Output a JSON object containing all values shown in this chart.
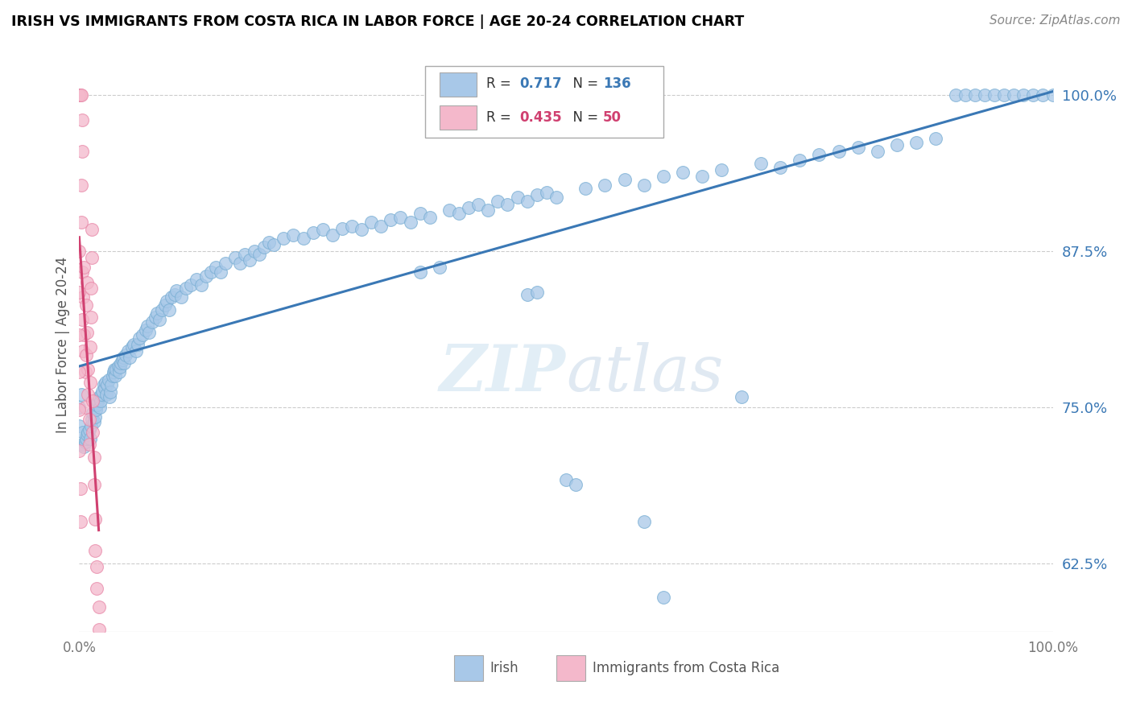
{
  "title": "IRISH VS IMMIGRANTS FROM COSTA RICA IN LABOR FORCE | AGE 20-24 CORRELATION CHART",
  "source": "Source: ZipAtlas.com",
  "ylabel": "In Labor Force | Age 20-24",
  "xlim": [
    0.0,
    1.0
  ],
  "ylim": [
    0.57,
    1.03
  ],
  "yticks": [
    0.625,
    0.75,
    0.875,
    1.0
  ],
  "ytick_labels": [
    "62.5%",
    "75.0%",
    "87.5%",
    "100.0%"
  ],
  "xticks": [
    0.0,
    1.0
  ],
  "xtick_labels": [
    "0.0%",
    "100.0%"
  ],
  "R_blue": 0.717,
  "N_blue": 136,
  "R_pink": 0.435,
  "N_pink": 50,
  "legend_label_blue": "Irish",
  "legend_label_pink": "Immigrants from Costa Rica",
  "watermark": "ZIPatlas",
  "blue_color": "#a8c8e8",
  "blue_edge_color": "#7aafd4",
  "pink_color": "#f4b8cb",
  "pink_edge_color": "#e888a8",
  "blue_line_color": "#3a78b5",
  "pink_line_color": "#d04070",
  "blue_text_color": "#3a78b5",
  "pink_text_color": "#d04070",
  "blue_scatter": [
    [
      0.0,
      0.735
    ],
    [
      0.0,
      0.75
    ],
    [
      0.002,
      0.76
    ],
    [
      0.003,
      0.72
    ],
    [
      0.004,
      0.73
    ],
    [
      0.005,
      0.718
    ],
    [
      0.006,
      0.722
    ],
    [
      0.007,
      0.725
    ],
    [
      0.008,
      0.728
    ],
    [
      0.009,
      0.73
    ],
    [
      0.01,
      0.732
    ],
    [
      0.011,
      0.725
    ],
    [
      0.012,
      0.735
    ],
    [
      0.013,
      0.74
    ],
    [
      0.014,
      0.745
    ],
    [
      0.015,
      0.738
    ],
    [
      0.016,
      0.742
    ],
    [
      0.017,
      0.748
    ],
    [
      0.018,
      0.752
    ],
    [
      0.019,
      0.755
    ],
    [
      0.02,
      0.758
    ],
    [
      0.021,
      0.75
    ],
    [
      0.022,
      0.755
    ],
    [
      0.023,
      0.76
    ],
    [
      0.024,
      0.763
    ],
    [
      0.025,
      0.768
    ],
    [
      0.026,
      0.765
    ],
    [
      0.027,
      0.77
    ],
    [
      0.028,
      0.76
    ],
    [
      0.029,
      0.768
    ],
    [
      0.03,
      0.772
    ],
    [
      0.031,
      0.758
    ],
    [
      0.032,
      0.762
    ],
    [
      0.033,
      0.768
    ],
    [
      0.034,
      0.775
    ],
    [
      0.035,
      0.778
    ],
    [
      0.036,
      0.78
    ],
    [
      0.037,
      0.775
    ],
    [
      0.038,
      0.78
    ],
    [
      0.04,
      0.783
    ],
    [
      0.041,
      0.778
    ],
    [
      0.042,
      0.782
    ],
    [
      0.043,
      0.785
    ],
    [
      0.044,
      0.788
    ],
    [
      0.045,
      0.79
    ],
    [
      0.046,
      0.785
    ],
    [
      0.048,
      0.792
    ],
    [
      0.05,
      0.795
    ],
    [
      0.052,
      0.79
    ],
    [
      0.054,
      0.798
    ],
    [
      0.056,
      0.8
    ],
    [
      0.058,
      0.795
    ],
    [
      0.06,
      0.8
    ],
    [
      0.062,
      0.805
    ],
    [
      0.065,
      0.808
    ],
    [
      0.068,
      0.812
    ],
    [
      0.07,
      0.815
    ],
    [
      0.072,
      0.81
    ],
    [
      0.075,
      0.818
    ],
    [
      0.078,
      0.822
    ],
    [
      0.08,
      0.825
    ],
    [
      0.082,
      0.82
    ],
    [
      0.085,
      0.828
    ],
    [
      0.088,
      0.832
    ],
    [
      0.09,
      0.835
    ],
    [
      0.092,
      0.828
    ],
    [
      0.095,
      0.838
    ],
    [
      0.098,
      0.84
    ],
    [
      0.1,
      0.843
    ],
    [
      0.105,
      0.838
    ],
    [
      0.11,
      0.845
    ],
    [
      0.115,
      0.848
    ],
    [
      0.12,
      0.852
    ],
    [
      0.125,
      0.848
    ],
    [
      0.13,
      0.855
    ],
    [
      0.135,
      0.858
    ],
    [
      0.14,
      0.862
    ],
    [
      0.145,
      0.858
    ],
    [
      0.15,
      0.865
    ],
    [
      0.16,
      0.87
    ],
    [
      0.165,
      0.865
    ],
    [
      0.17,
      0.872
    ],
    [
      0.175,
      0.868
    ],
    [
      0.18,
      0.875
    ],
    [
      0.185,
      0.872
    ],
    [
      0.19,
      0.878
    ],
    [
      0.195,
      0.882
    ],
    [
      0.2,
      0.88
    ],
    [
      0.21,
      0.885
    ],
    [
      0.22,
      0.888
    ],
    [
      0.23,
      0.885
    ],
    [
      0.24,
      0.89
    ],
    [
      0.25,
      0.892
    ],
    [
      0.26,
      0.888
    ],
    [
      0.27,
      0.893
    ],
    [
      0.28,
      0.895
    ],
    [
      0.29,
      0.892
    ],
    [
      0.3,
      0.898
    ],
    [
      0.31,
      0.895
    ],
    [
      0.32,
      0.9
    ],
    [
      0.33,
      0.902
    ],
    [
      0.34,
      0.898
    ],
    [
      0.35,
      0.905
    ],
    [
      0.36,
      0.902
    ],
    [
      0.38,
      0.908
    ],
    [
      0.39,
      0.905
    ],
    [
      0.4,
      0.91
    ],
    [
      0.35,
      0.858
    ],
    [
      0.37,
      0.862
    ],
    [
      0.41,
      0.912
    ],
    [
      0.42,
      0.908
    ],
    [
      0.43,
      0.915
    ],
    [
      0.44,
      0.912
    ],
    [
      0.45,
      0.918
    ],
    [
      0.46,
      0.915
    ],
    [
      0.47,
      0.92
    ],
    [
      0.48,
      0.922
    ],
    [
      0.49,
      0.918
    ],
    [
      0.5,
      0.692
    ],
    [
      0.51,
      0.688
    ],
    [
      0.46,
      0.84
    ],
    [
      0.47,
      0.842
    ],
    [
      0.52,
      0.925
    ],
    [
      0.54,
      0.928
    ],
    [
      0.56,
      0.932
    ],
    [
      0.58,
      0.928
    ],
    [
      0.6,
      0.935
    ],
    [
      0.62,
      0.938
    ],
    [
      0.64,
      0.935
    ],
    [
      0.66,
      0.94
    ],
    [
      0.68,
      0.758
    ],
    [
      0.7,
      0.945
    ],
    [
      0.72,
      0.942
    ],
    [
      0.74,
      0.948
    ],
    [
      0.76,
      0.952
    ],
    [
      0.78,
      0.955
    ],
    [
      0.8,
      0.958
    ],
    [
      0.82,
      0.955
    ],
    [
      0.84,
      0.96
    ],
    [
      0.86,
      0.962
    ],
    [
      0.88,
      0.965
    ],
    [
      0.9,
      1.0
    ],
    [
      0.91,
      1.0
    ],
    [
      0.92,
      1.0
    ],
    [
      0.93,
      1.0
    ],
    [
      0.94,
      1.0
    ],
    [
      0.95,
      1.0
    ],
    [
      0.96,
      1.0
    ],
    [
      0.97,
      1.0
    ],
    [
      0.58,
      0.658
    ],
    [
      0.6,
      0.598
    ],
    [
      0.98,
      1.0
    ],
    [
      0.99,
      1.0
    ],
    [
      1.0,
      1.0
    ]
  ],
  "pink_scatter": [
    [
      0.0,
      1.0
    ],
    [
      0.0,
      1.0
    ],
    [
      0.0,
      1.0
    ],
    [
      0.001,
      1.0
    ],
    [
      0.002,
      1.0
    ],
    [
      0.003,
      0.858
    ],
    [
      0.003,
      0.82
    ],
    [
      0.004,
      0.795
    ],
    [
      0.004,
      0.838
    ],
    [
      0.005,
      0.808
    ],
    [
      0.005,
      0.862
    ],
    [
      0.006,
      0.778
    ],
    [
      0.006,
      0.75
    ],
    [
      0.007,
      0.792
    ],
    [
      0.007,
      0.832
    ],
    [
      0.008,
      0.85
    ],
    [
      0.008,
      0.81
    ],
    [
      0.009,
      0.78
    ],
    [
      0.009,
      0.76
    ],
    [
      0.01,
      0.74
    ],
    [
      0.01,
      0.72
    ],
    [
      0.011,
      0.77
    ],
    [
      0.011,
      0.798
    ],
    [
      0.012,
      0.822
    ],
    [
      0.012,
      0.845
    ],
    [
      0.013,
      0.87
    ],
    [
      0.013,
      0.892
    ],
    [
      0.014,
      0.755
    ],
    [
      0.014,
      0.73
    ],
    [
      0.015,
      0.71
    ],
    [
      0.015,
      0.688
    ],
    [
      0.016,
      0.66
    ],
    [
      0.016,
      0.635
    ],
    [
      0.018,
      0.622
    ],
    [
      0.018,
      0.605
    ],
    [
      0.02,
      0.59
    ],
    [
      0.02,
      0.572
    ],
    [
      0.0,
      0.875
    ],
    [
      0.0,
      0.842
    ],
    [
      0.0,
      0.808
    ],
    [
      0.0,
      0.778
    ],
    [
      0.0,
      0.748
    ],
    [
      0.0,
      0.715
    ],
    [
      0.001,
      0.685
    ],
    [
      0.001,
      0.658
    ],
    [
      0.002,
      0.898
    ],
    [
      0.002,
      0.928
    ],
    [
      0.003,
      0.955
    ],
    [
      0.003,
      0.98
    ]
  ]
}
